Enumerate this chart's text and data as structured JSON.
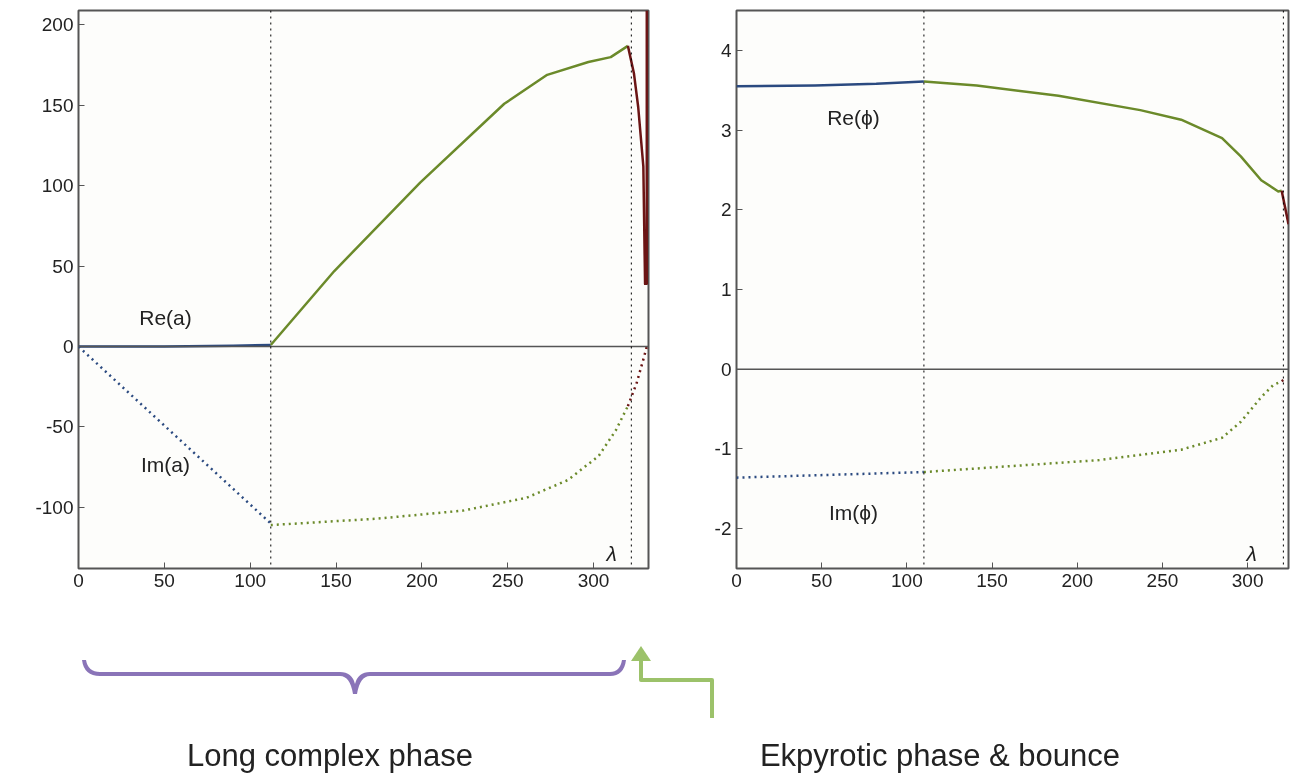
{
  "chart_data": [
    {
      "type": "line",
      "xlabel": "λ",
      "xlim": [
        0,
        332
      ],
      "ylim": [
        -138,
        209
      ],
      "xticks": [
        0,
        50,
        100,
        150,
        200,
        250,
        300
      ],
      "yticks": [
        -100,
        -50,
        0,
        50,
        100,
        150,
        200
      ],
      "grid": false,
      "series": [
        {
          "color": "#2b4a80",
          "line_style": "solid",
          "x": [
            0,
            50,
            90,
            112
          ],
          "values": [
            0,
            0,
            0.5,
            1
          ]
        },
        {
          "color": "#6b8a2a",
          "line_style": "solid",
          "x": [
            112,
            149,
            199,
            248,
            273,
            297,
            310,
            320
          ],
          "values": [
            1,
            47,
            102,
            151,
            169,
            177,
            180,
            187
          ]
        },
        {
          "color": "#6b1515",
          "line_style": "solid",
          "x": [
            320,
            323.5,
            326,
            329,
            330,
            331,
            331
          ],
          "values": [
            187,
            170,
            149,
            112,
            39,
            39,
            209
          ]
        },
        {
          "color": "#2b4a80",
          "line_style": "dotted",
          "x": [
            0,
            112
          ],
          "values": [
            0,
            -110
          ]
        },
        {
          "color": "#6b8a2a",
          "line_style": "dotted",
          "x": [
            112,
            174,
            224,
            261,
            285,
            303,
            313,
            320
          ],
          "values": [
            -111,
            -107,
            -102,
            -94,
            -83,
            -68,
            -52,
            -37
          ]
        },
        {
          "color": "#6b1515",
          "line_style": "dotted",
          "x": [
            320,
            325,
            329,
            331
          ],
          "values": [
            -37,
            -23,
            -8,
            0
          ]
        }
      ],
      "ref_lines": [
        {
          "axis": "y",
          "value": 0,
          "color": "#555555",
          "line_style": "solid"
        },
        {
          "axis": "x",
          "value": 112,
          "color": "#000000",
          "line_style": "dotted"
        },
        {
          "axis": "x",
          "value": 322,
          "color": "#000000",
          "line_style": "dotted"
        }
      ],
      "annotations": [
        "Re(a)",
        "Im(a)",
        "Long complex phase",
        "Ekpyrotic phase & bounce"
      ]
    },
    {
      "type": "line",
      "xlabel": "λ",
      "xlim": [
        0,
        324
      ],
      "ylim": [
        -2.5,
        4.5
      ],
      "xticks": [
        0,
        50,
        100,
        150,
        200,
        250,
        300
      ],
      "yticks": [
        -2,
        -1,
        0,
        1,
        2,
        3,
        4
      ],
      "grid": false,
      "series": [
        {
          "color": "#2b4a80",
          "line_style": "solid",
          "x": [
            0,
            46,
            82,
            110
          ],
          "values": [
            3.55,
            3.56,
            3.58,
            3.61
          ]
        },
        {
          "color": "#6b8a2a",
          "line_style": "solid",
          "x": [
            110,
            141,
            189,
            237,
            261,
            285,
            296,
            308,
            318,
            320
          ],
          "values": [
            3.61,
            3.56,
            3.43,
            3.25,
            3.13,
            2.9,
            2.67,
            2.37,
            2.23,
            2.24
          ]
        },
        {
          "color": "#6b1515",
          "line_style": "solid",
          "x": [
            320,
            324
          ],
          "values": [
            2.24,
            1.82
          ]
        },
        {
          "color": "#2b4a80",
          "line_style": "dotted",
          "x": [
            0,
            110
          ],
          "values": [
            -1.36,
            -1.29
          ]
        },
        {
          "color": "#6b8a2a",
          "line_style": "dotted",
          "x": [
            110,
            165,
            213,
            261,
            285,
            296,
            308,
            315,
            320
          ],
          "values": [
            -1.29,
            -1.21,
            -1.14,
            -1.01,
            -0.86,
            -0.66,
            -0.35,
            -0.2,
            -0.15
          ]
        },
        {
          "color": "#6b1515",
          "line_style": "dotted",
          "x": [
            320,
            322
          ],
          "values": [
            -0.15,
            -0.12
          ]
        }
      ],
      "ref_lines": [
        {
          "axis": "y",
          "value": 0,
          "color": "#555555",
          "line_style": "solid"
        },
        {
          "axis": "x",
          "value": 110,
          "color": "#000000",
          "line_style": "dotted"
        },
        {
          "axis": "x",
          "value": 321,
          "color": "#000000",
          "line_style": "dotted"
        }
      ],
      "annotations": [
        "Re(ϕ)",
        "Im(ϕ)"
      ]
    }
  ]
}
